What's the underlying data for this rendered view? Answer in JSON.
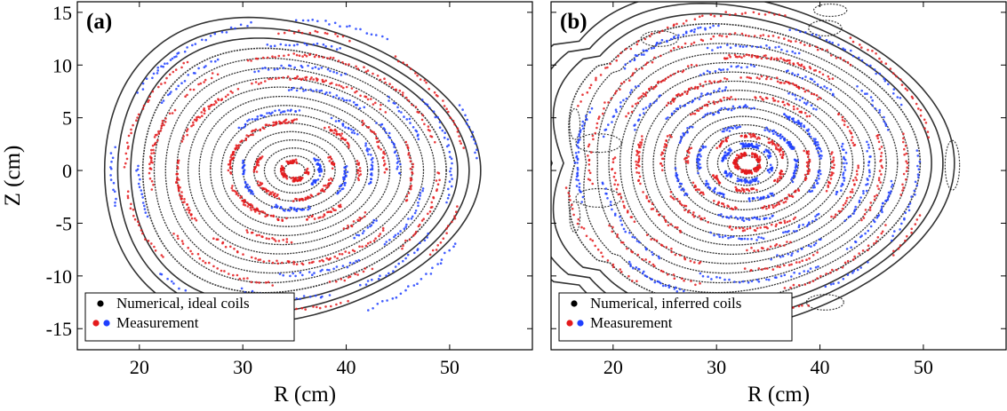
{
  "chart_data": [
    {
      "type": "scatter",
      "panel_label": "(a)",
      "xlabel": "R (cm)",
      "ylabel": "Z (cm)",
      "xlim": [
        14,
        58
      ],
      "ylim": [
        -17,
        16
      ],
      "xticks": [
        20,
        30,
        40,
        50
      ],
      "yticks": [
        -15,
        -10,
        -5,
        0,
        5,
        10,
        15
      ],
      "grid": false,
      "legend_position": "bottom-left",
      "legend": [
        {
          "label": "Numerical, ideal coils",
          "colors": [
            "#000000"
          ]
        },
        {
          "label": "Measurement",
          "colors": [
            "#e41a1c",
            "#1f3fff"
          ]
        }
      ],
      "series": [
        {
          "name": "Numerical, ideal coils",
          "color": "#000000",
          "magnetic_axis": [
            35.0,
            0.0
          ],
          "flux_surface_minor_radius_range": [
            1.0,
            18.0
          ],
          "outermost_extent": {
            "R": [
              20.0,
              55.0
            ],
            "Z": [
              -11.5,
              11.5
            ]
          }
        },
        {
          "name": "Measurement",
          "colors": [
            "#e41a1c",
            "#1f3fff"
          ],
          "extent": {
            "R": [
              19.0,
              52.0
            ],
            "Z": [
              -11.0,
              12.0
            ]
          }
        }
      ]
    },
    {
      "type": "scatter",
      "panel_label": "(b)",
      "xlabel": "R (cm)",
      "ylabel": "",
      "xlim": [
        14,
        58
      ],
      "ylim": [
        -17,
        16
      ],
      "xticks": [
        20,
        30,
        40,
        50
      ],
      "yticks": [
        -15,
        -10,
        -5,
        0,
        5,
        10,
        15
      ],
      "grid": false,
      "legend_position": "bottom-left",
      "legend": [
        {
          "label": "Numerical, inferred coils",
          "colors": [
            "#000000"
          ]
        },
        {
          "label": "Measurement",
          "colors": [
            "#e41a1c",
            "#1f3fff"
          ]
        }
      ],
      "series": [
        {
          "name": "Numerical, inferred coils",
          "color": "#000000",
          "magnetic_axis": [
            33.0,
            0.7
          ],
          "flux_surface_minor_radius_range": [
            1.0,
            20.0
          ],
          "outermost_extent": {
            "R": [
              15.0,
              54.0
            ],
            "Z": [
              -12.0,
              14.5
            ]
          }
        },
        {
          "name": "Measurement",
          "colors": [
            "#e41a1c",
            "#1f3fff"
          ],
          "extent": {
            "R": [
              20.0,
              50.0
            ],
            "Z": [
              -10.5,
              10.0
            ]
          }
        }
      ]
    }
  ]
}
